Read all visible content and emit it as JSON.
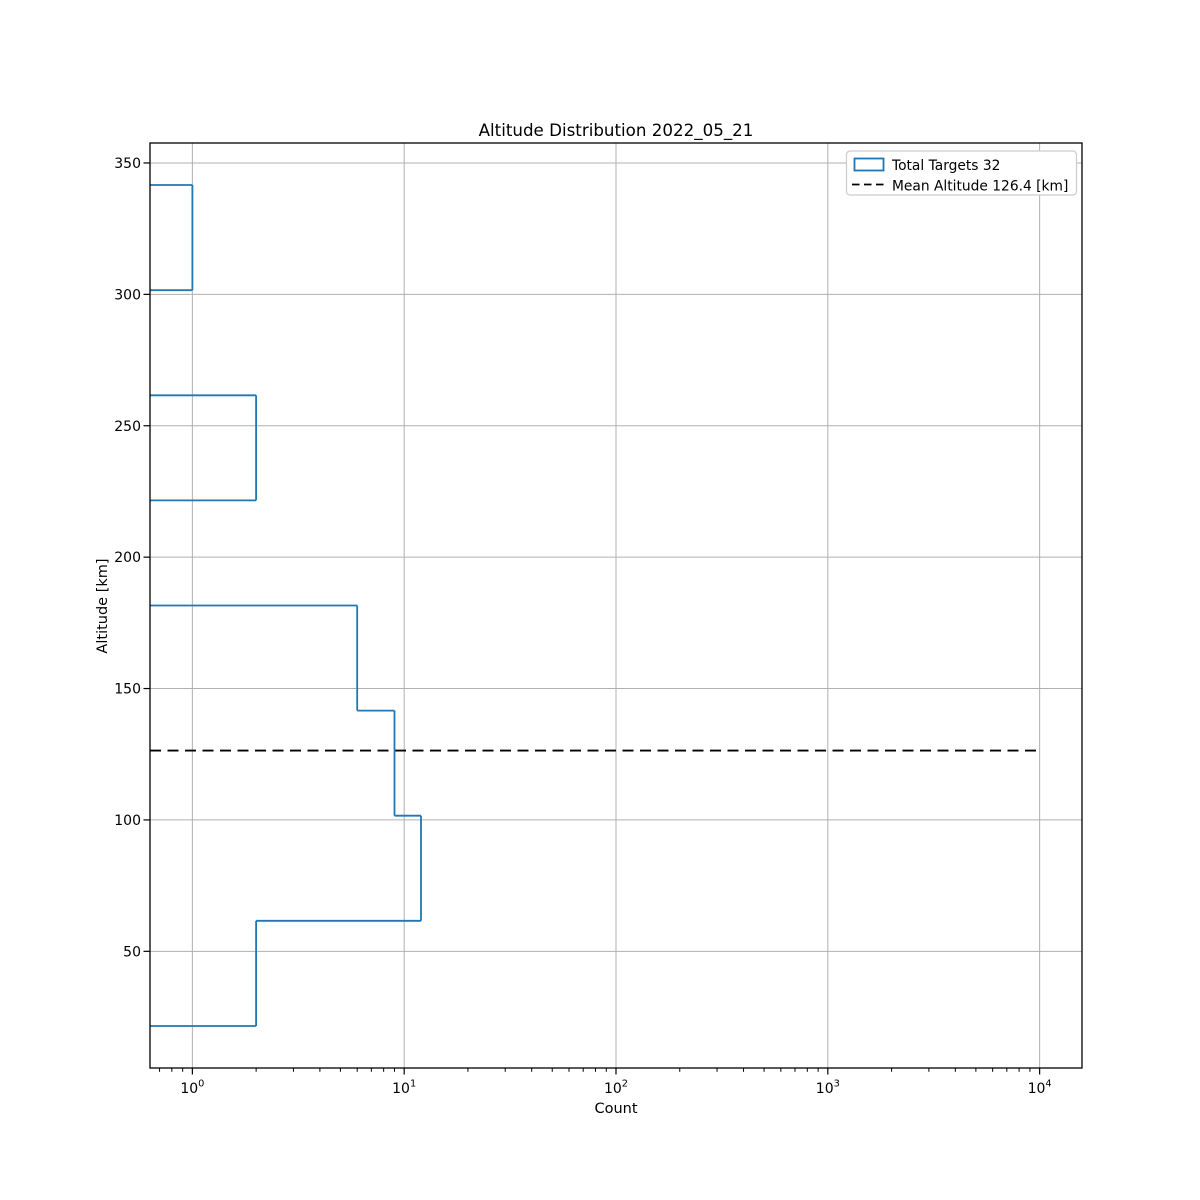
{
  "chart_data": {
    "type": "bar",
    "subtype": "step-histogram",
    "orientation": "horizontal",
    "title": "Altitude Distribution 2022_05_21",
    "xlabel": "Count",
    "ylabel": "Altitude [km]",
    "x_scale": "log",
    "xlim_log10": [
      -0.2,
      4.2
    ],
    "ylim": [
      5.6,
      357.6
    ],
    "grid": true,
    "bin_edges_km": [
      21.6,
      61.6,
      101.6,
      141.6,
      181.6,
      221.6,
      261.6,
      301.6,
      341.6
    ],
    "counts": [
      2,
      12,
      9,
      6,
      0,
      2,
      0,
      1
    ],
    "total_targets": 32,
    "mean_altitude_km": 126.4,
    "mean_line_x_range": [
      0,
      10000
    ],
    "x_major_tick_values": [
      1,
      10,
      100,
      1000,
      10000
    ],
    "x_tick_base": "10",
    "x_tick_exponents": [
      "0",
      "1",
      "2",
      "3",
      "4"
    ],
    "y_tick_values": [
      50,
      100,
      150,
      200,
      250,
      300,
      350
    ],
    "y_tick_labels": [
      "50",
      "100",
      "150",
      "200",
      "250",
      "300",
      "350"
    ],
    "legend": {
      "position": "upper-right",
      "items": [
        {
          "handle": "step-outline-swatch",
          "label": "Total Targets 32"
        },
        {
          "handle": "dashed-line-swatch",
          "label": "Mean Altitude 126.4 [km]"
        }
      ]
    },
    "colors": {
      "histogram": "#1f77b4",
      "mean_line": "#000000",
      "grid": "#b0b0b0",
      "spine": "#000000",
      "legend_edge": "#cccccc",
      "background": "#ffffff"
    }
  }
}
